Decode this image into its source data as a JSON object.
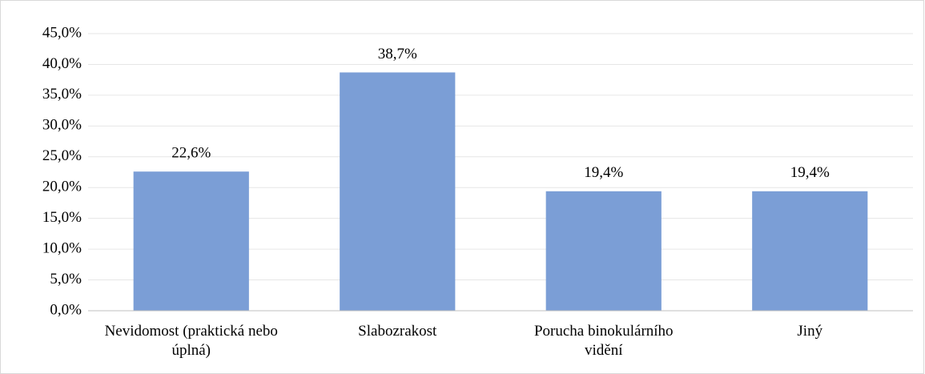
{
  "chart_data": {
    "type": "bar",
    "categories": [
      "Nevidomost (praktická nebo úplná)",
      "Slabozrakost",
      "Porucha binokulárního vidění",
      "Jiný"
    ],
    "values": [
      22.6,
      38.7,
      19.4,
      19.4
    ],
    "value_labels": [
      "22,6%",
      "38,7%",
      "19,4%",
      "19,4%"
    ],
    "color": "#7b9ed6",
    "ylim": [
      0,
      45
    ],
    "yticks": [
      {
        "value": 0,
        "label": "0,0%"
      },
      {
        "value": 5,
        "label": "5,0%"
      },
      {
        "value": 10,
        "label": "10,0%"
      },
      {
        "value": 15,
        "label": "15,0%"
      },
      {
        "value": 20,
        "label": "20,0%"
      },
      {
        "value": 25,
        "label": "25,0%"
      },
      {
        "value": 30,
        "label": "30,0%"
      },
      {
        "value": 35,
        "label": "35,0%"
      },
      {
        "value": 40,
        "label": "40,0%"
      },
      {
        "value": 45,
        "label": "45,0%"
      }
    ],
    "grid": true
  }
}
